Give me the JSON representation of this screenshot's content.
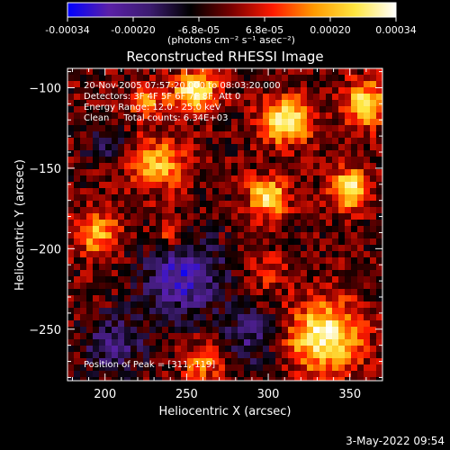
{
  "chart_data": {
    "type": "heatmap",
    "title": "Reconstructed RHESSI Image",
    "xlabel": "Heliocentric X (arcsec)",
    "ylabel": "Heliocentric Y (arcsec)",
    "xlim": [
      177,
      370
    ],
    "ylim": [
      -282,
      -88
    ],
    "x_ticks": [
      200,
      250,
      300,
      350
    ],
    "y_ticks": [
      -100,
      -150,
      -200,
      -250
    ],
    "colorbar": {
      "range": [
        -0.00034,
        0.00034
      ],
      "ticks": [
        "-0.00034",
        "-0.00020",
        "-6.8e-05",
        "6.8e-05",
        "0.00020",
        "0.00034"
      ],
      "unit_label": "(photons cm⁻² s⁻¹ asec⁻²)",
      "colors": [
        "#0000ff",
        "#5a20a8",
        "#3c1c70",
        "#000000",
        "#7a0000",
        "#ff1a00",
        "#ff9a00",
        "#ffe640",
        "#ffffff"
      ]
    },
    "annotations": [
      "20-Nov-2005 07:57:20.000 to 08:03:20.000",
      "Detectors: 3F 4F 5F 6F 7F 8F, Att 0",
      "Energy Range: 12.0 - 25.0 keV",
      "Clean     Total counts: 6.34E+03"
    ],
    "peak_label": "Position of Peak = [311,-119]",
    "hotspots": [
      {
        "x": 311,
        "y": -120,
        "intensity": 1.0,
        "radius": 14
      },
      {
        "x": 255,
        "y": -103,
        "intensity": 0.95,
        "radius": 13
      },
      {
        "x": 350,
        "y": -163,
        "intensity": 0.9,
        "radius": 12
      },
      {
        "x": 300,
        "y": -168,
        "intensity": 0.85,
        "radius": 12
      },
      {
        "x": 335,
        "y": -255,
        "intensity": 0.95,
        "radius": 22
      },
      {
        "x": 360,
        "y": -110,
        "intensity": 0.8,
        "radius": 14
      },
      {
        "x": 232,
        "y": -148,
        "intensity": 0.65,
        "radius": 16
      },
      {
        "x": 195,
        "y": -190,
        "intensity": 0.6,
        "radius": 14
      },
      {
        "x": 225,
        "y": -108,
        "intensity": 0.55,
        "radius": 10
      },
      {
        "x": 260,
        "y": -270,
        "intensity": 0.5,
        "radius": 12
      },
      {
        "x": 240,
        "y": -190,
        "intensity": 0.4,
        "radius": 10
      },
      {
        "x": 300,
        "y": -215,
        "intensity": 0.35,
        "radius": 10
      }
    ],
    "coldspots": [
      {
        "x": 248,
        "y": -218,
        "intensity": 0.9,
        "radius": 24
      },
      {
        "x": 290,
        "y": -255,
        "intensity": 0.6,
        "radius": 16
      },
      {
        "x": 205,
        "y": -260,
        "intensity": 0.6,
        "radius": 18
      },
      {
        "x": 200,
        "y": -135,
        "intensity": 0.4,
        "radius": 12
      }
    ]
  },
  "footer_timestamp": "3-May-2022 09:54"
}
